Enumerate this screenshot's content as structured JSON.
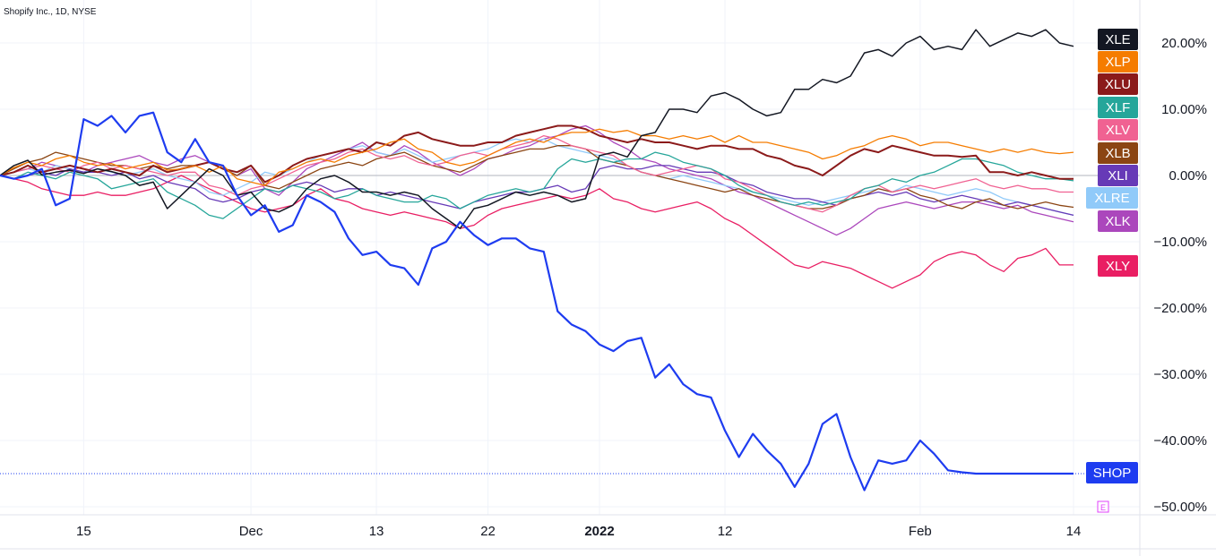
{
  "header": {
    "symbol_label": "Shopify Inc., 1D, NYSE"
  },
  "chart_data": {
    "type": "line",
    "y_unit": "%",
    "ylim": [
      -50,
      25
    ],
    "yticks": [
      "20.00%",
      "10.00%",
      "0.00%",
      "−10.00%",
      "−20.00%",
      "−30.00%",
      "−40.00%",
      "−50.00%"
    ],
    "ytick_values": [
      20,
      10,
      0,
      -10,
      -20,
      -30,
      -40,
      -50
    ],
    "x_tick_labels": [
      {
        "label": "15",
        "index": 6,
        "bold": false
      },
      {
        "label": "Dec",
        "index": 18,
        "bold": false
      },
      {
        "label": "13",
        "index": 27,
        "bold": false
      },
      {
        "label": "22",
        "index": 35,
        "bold": false
      },
      {
        "label": "2022",
        "index": 43,
        "bold": true
      },
      {
        "label": "12",
        "index": 52,
        "bold": false
      },
      {
        "label": "Feb",
        "index": 66,
        "bold": false
      },
      {
        "label": "14",
        "index": 77,
        "bold": false
      }
    ],
    "n_points": 78,
    "grid": true,
    "earnings_marker": "E",
    "series": [
      {
        "name": "XLE",
        "color": "#131722",
        "width": 1.5,
        "values": [
          0,
          1.5,
          2.3,
          0.1,
          0.5,
          0.8,
          0.3,
          1.0,
          0.6,
          0,
          -1.5,
          -1.0,
          -5,
          -3,
          -1.0,
          1.0,
          0,
          -3,
          -2.5,
          -5,
          -5.5,
          -4.5,
          -2.0,
          -0.5,
          0,
          -1.0,
          -2.5,
          -2.5,
          -3.0,
          -2.5,
          -3.0,
          -5.0,
          -6.5,
          -8.0,
          -5.0,
          -4.5,
          -3.5,
          -2.5,
          -3.0,
          -2.5,
          -3.0,
          -4.0,
          -3.5,
          3.0,
          3.5,
          2.8,
          6.0,
          6.5,
          10.0,
          10.0,
          9.5,
          12.0,
          12.5,
          11.5,
          10.0,
          9.0,
          9.5,
          13.0,
          13.0,
          14.5,
          14.0,
          15.0,
          18.5,
          19.0,
          18.0,
          20.0,
          21.0,
          19.0,
          19.5,
          19.0,
          22.0,
          19.5,
          20.5,
          21.5,
          21.0,
          22.0,
          20.0,
          19.5
        ]
      },
      {
        "name": "XLP",
        "color": "#f57c00",
        "width": 1.3,
        "values": [
          0,
          1.2,
          2.0,
          1.5,
          2.5,
          3.0,
          2.0,
          1.5,
          1.8,
          1.0,
          1.5,
          2.0,
          0.8,
          1.0,
          1.5,
          0.5,
          1.5,
          -0.5,
          -1.0,
          -1.5,
          0.5,
          1.0,
          2.0,
          2.5,
          2.0,
          3.0,
          3.5,
          4.0,
          5.0,
          5.5,
          4.0,
          3.5,
          2.0,
          1.5,
          2.0,
          3.0,
          4.0,
          5.0,
          5.5,
          5.0,
          6.0,
          6.5,
          6.5,
          7.0,
          6.5,
          6.8,
          6.0,
          6.0,
          5.5,
          6.0,
          5.5,
          6.0,
          5.0,
          6.0,
          5.0,
          5.0,
          4.5,
          4.0,
          3.5,
          2.5,
          3.0,
          4.0,
          4.5,
          5.5,
          6.0,
          5.5,
          4.5,
          5.0,
          5.0,
          4.5,
          4.0,
          3.5,
          4.0,
          3.5,
          4.0,
          3.5,
          3.3,
          3.5
        ]
      },
      {
        "name": "XLU",
        "color": "#8b1a1a",
        "width": 2.0,
        "values": [
          0,
          0.5,
          1.5,
          0.5,
          1.0,
          1.5,
          1.0,
          0.5,
          1.0,
          0.5,
          0,
          1.5,
          0.5,
          1.0,
          1.5,
          2.0,
          1.0,
          0.5,
          1.5,
          -1.0,
          0,
          1.5,
          2.5,
          3.0,
          3.5,
          4.0,
          3.5,
          5.0,
          4.5,
          6.0,
          6.5,
          5.5,
          5.0,
          4.5,
          4.5,
          5.0,
          5.0,
          6.0,
          6.5,
          7.0,
          7.5,
          7.5,
          7.0,
          6.0,
          5.5,
          5.0,
          5.5,
          5.0,
          5.0,
          4.5,
          4.0,
          4.5,
          4.5,
          4.0,
          4.0,
          3.0,
          2.5,
          1.5,
          1.0,
          0,
          1.5,
          3.0,
          4.0,
          3.5,
          4.5,
          4.0,
          3.5,
          3.0,
          3.0,
          2.8,
          3.0,
          0.5,
          0.5,
          0,
          0.5,
          0,
          -0.5,
          -0.5
        ]
      },
      {
        "name": "XLF",
        "color": "#26a69a",
        "width": 1.3,
        "values": [
          0,
          -0.5,
          0.5,
          0,
          -0.5,
          0.5,
          0,
          -0.5,
          -2.0,
          -1.5,
          -1.0,
          -0.5,
          -2.5,
          -3.5,
          -4.5,
          -6.0,
          -6.5,
          -5.0,
          -3.5,
          -2.0,
          -2.5,
          -1.5,
          -2.0,
          -2.5,
          -3.5,
          -3.0,
          -2.0,
          -3.0,
          -3.5,
          -4.0,
          -4.0,
          -3.0,
          -3.5,
          -5.0,
          -4.0,
          -3.0,
          -2.5,
          -2.0,
          -2.5,
          -2.0,
          1.0,
          2.5,
          2.0,
          2.5,
          2.0,
          2.5,
          2.5,
          3.5,
          3.0,
          2.0,
          1.5,
          1.0,
          0,
          -1.5,
          -2.5,
          -3.0,
          -4.0,
          -4.5,
          -4.0,
          -4.5,
          -4.0,
          -3.5,
          -2.0,
          -1.5,
          -0.5,
          -1.0,
          0,
          0.5,
          1.5,
          2.5,
          2.5,
          2.0,
          1.5,
          0.5,
          0,
          -0.5,
          -0.5,
          -0.8
        ]
      },
      {
        "name": "XLV",
        "color": "#f06292",
        "width": 1.3,
        "values": [
          0,
          0.5,
          1.0,
          1.5,
          1.0,
          0.5,
          1.5,
          2.0,
          1.0,
          1.5,
          1.0,
          0.5,
          0,
          0.5,
          0.5,
          -1.5,
          -2.0,
          -3.0,
          -2.0,
          -1.5,
          -0.5,
          0.5,
          1.5,
          2.0,
          2.5,
          3.5,
          4.0,
          3.0,
          2.5,
          3.0,
          2.0,
          1.5,
          2.0,
          3.0,
          3.5,
          3.0,
          4.0,
          4.5,
          5.0,
          6.0,
          5.5,
          4.5,
          4.0,
          3.5,
          3.0,
          1.5,
          0.5,
          0,
          0.5,
          1.0,
          1.5,
          1.0,
          -0.5,
          -1.0,
          -2.0,
          -3.0,
          -4.0,
          -4.5,
          -5.0,
          -5.5,
          -4.5,
          -3.0,
          -2.0,
          -1.5,
          -2.5,
          -2.0,
          -1.5,
          -2.0,
          -1.5,
          -1.0,
          -0.5,
          -1.5,
          -2.0,
          -1.5,
          -2.0,
          -2.0,
          -2.5,
          -2.5
        ]
      },
      {
        "name": "XLB",
        "color": "#8b4513",
        "width": 1.3,
        "values": [
          0,
          1.0,
          2.0,
          2.5,
          3.5,
          3.0,
          2.5,
          2.0,
          1.5,
          1.5,
          1.0,
          1.5,
          1.0,
          1.5,
          1.5,
          2.0,
          1.0,
          0,
          1.5,
          -1.5,
          -2.0,
          -1.0,
          0,
          1.0,
          1.5,
          2.0,
          1.5,
          2.5,
          3.0,
          3.5,
          2.5,
          1.5,
          1.0,
          0.5,
          1.5,
          2.5,
          3.0,
          3.5,
          4.0,
          4.0,
          4.5,
          4.5,
          4.0,
          2.5,
          2.0,
          1.5,
          0.5,
          0,
          -0.5,
          -1.0,
          -1.5,
          -2.0,
          -2.5,
          -2.0,
          -3.0,
          -3.5,
          -4.0,
          -4.5,
          -5.0,
          -5.0,
          -4.5,
          -3.5,
          -3.0,
          -2.0,
          -2.5,
          -2.0,
          -3.0,
          -3.5,
          -4.5,
          -5.0,
          -4.0,
          -3.5,
          -4.5,
          -5.0,
          -4.5,
          -4.0,
          -4.5,
          -4.8
        ]
      },
      {
        "name": "XLI",
        "color": "#673ab7",
        "width": 1.3,
        "values": [
          0,
          -0.5,
          0,
          0.5,
          0,
          1.0,
          0.5,
          0.5,
          0,
          0.5,
          -0.5,
          0,
          -1.0,
          -1.5,
          -2.0,
          -3.5,
          -4.0,
          -3.5,
          -2.5,
          -2.0,
          -2.5,
          -1.5,
          -1.0,
          -1.5,
          -2.5,
          -2.0,
          -2.0,
          -3.0,
          -2.5,
          -3.0,
          -3.5,
          -4.0,
          -4.5,
          -5.0,
          -4.0,
          -3.5,
          -3.0,
          -2.5,
          -2.5,
          -2.0,
          -1.5,
          -2.5,
          -2.0,
          1.0,
          1.5,
          1.0,
          1.0,
          1.5,
          1.5,
          1.0,
          0.5,
          0.5,
          0,
          -1.0,
          -1.5,
          -2.5,
          -3.0,
          -3.5,
          -3.5,
          -4.0,
          -4.5,
          -3.5,
          -3.0,
          -2.5,
          -3.0,
          -2.5,
          -3.5,
          -4.0,
          -3.5,
          -3.0,
          -3.5,
          -4.0,
          -4.5,
          -4.0,
          -4.5,
          -5.0,
          -5.5,
          -6.0
        ]
      },
      {
        "name": "XLRE",
        "color": "#90caf9",
        "width": 1.3,
        "values": [
          0,
          0.5,
          1.0,
          0.5,
          1.5,
          1.0,
          0.5,
          1.0,
          0.5,
          0,
          0.5,
          1.0,
          0,
          -0.5,
          -1.0,
          -2.5,
          -3.0,
          -2.0,
          -1.0,
          0.5,
          0,
          1.0,
          2.0,
          3.0,
          3.5,
          4.0,
          4.5,
          3.5,
          3.0,
          4.0,
          3.0,
          2.0,
          2.5,
          3.0,
          3.5,
          4.0,
          5.0,
          5.5,
          5.0,
          5.5,
          4.5,
          4.0,
          3.5,
          3.0,
          2.5,
          1.5,
          0.5,
          0,
          -0.5,
          0,
          -0.5,
          -1.0,
          -1.5,
          -2.0,
          -2.5,
          -3.0,
          -3.5,
          -4.0,
          -4.5,
          -4.0,
          -3.5,
          -3.0,
          -2.5,
          -2.0,
          -2.5,
          -1.5,
          -2.0,
          -2.5,
          -3.0,
          -2.5,
          -2.0,
          -2.5,
          -3.5,
          -4.0,
          -4.5,
          -5.0,
          -5.5,
          -6.0
        ]
      },
      {
        "name": "XLK",
        "color": "#ab47bc",
        "width": 1.3,
        "values": [
          0,
          0.5,
          1.0,
          2.0,
          1.5,
          1.0,
          0.5,
          1.5,
          2.0,
          2.5,
          3.0,
          2.0,
          1.5,
          2.5,
          3.0,
          2.0,
          1.0,
          0,
          1.0,
          -2.0,
          -3.0,
          -1.0,
          1.0,
          2.0,
          3.0,
          4.0,
          5.0,
          3.5,
          3.0,
          4.5,
          3.5,
          2.0,
          1.0,
          0,
          1.0,
          2.5,
          3.0,
          4.0,
          4.5,
          5.5,
          6.0,
          7.0,
          7.5,
          6.5,
          5.0,
          4.0,
          2.5,
          2.0,
          1.0,
          0.5,
          0,
          -0.5,
          -1.5,
          -2.5,
          -3.0,
          -4.0,
          -5.0,
          -6.0,
          -7.0,
          -8.0,
          -9.0,
          -8.0,
          -6.5,
          -5.0,
          -4.5,
          -4.0,
          -4.5,
          -5.0,
          -4.5,
          -4.0,
          -4.0,
          -4.5,
          -5.0,
          -4.5,
          -5.5,
          -6.0,
          -6.5,
          -7.0
        ]
      },
      {
        "name": "XLY",
        "color": "#e91e63",
        "width": 1.3,
        "values": [
          0,
          -0.5,
          -1.0,
          -2.0,
          -2.5,
          -3.0,
          -3.0,
          -2.5,
          -3.0,
          -3.0,
          -2.5,
          -2.0,
          -1.0,
          0,
          -1.0,
          -2.0,
          -3.0,
          -4.0,
          -5.0,
          -5.5,
          -5.0,
          -4.5,
          -3.0,
          -2.0,
          -3.5,
          -4.0,
          -5.0,
          -5.5,
          -6.0,
          -5.5,
          -6.0,
          -6.5,
          -7.0,
          -8.0,
          -7.5,
          -6.0,
          -5.0,
          -4.5,
          -4.0,
          -3.5,
          -3.0,
          -3.5,
          -3.0,
          -2.0,
          -3.5,
          -4.0,
          -5.0,
          -5.5,
          -5.0,
          -4.5,
          -4.0,
          -5.0,
          -6.5,
          -7.5,
          -9.0,
          -10.5,
          -12.0,
          -13.5,
          -14.0,
          -13.0,
          -13.5,
          -14.0,
          -15.0,
          -16.0,
          -17.0,
          -16.0,
          -15.0,
          -13.0,
          -12.0,
          -11.5,
          -12.0,
          -13.5,
          -14.5,
          -12.5,
          -12.0,
          -11.0,
          -13.5,
          -13.5
        ]
      },
      {
        "name": "SHOP",
        "color": "#1e3cf0",
        "width": 2.2,
        "values": [
          0,
          -0.5,
          0,
          1.0,
          -4.5,
          -3.5,
          8.5,
          7.5,
          9.0,
          6.5,
          9.0,
          9.5,
          3.5,
          2.0,
          5.5,
          2.0,
          1.5,
          -3.0,
          -6.0,
          -4.5,
          -8.5,
          -7.5,
          -3.0,
          -4.0,
          -5.5,
          -9.5,
          -12.0,
          -11.5,
          -13.5,
          -14.0,
          -16.5,
          -11.0,
          -10.0,
          -7.0,
          -9.0,
          -10.5,
          -9.5,
          -9.5,
          -11.0,
          -11.5,
          -20.5,
          -22.5,
          -23.5,
          -25.5,
          -26.5,
          -25.0,
          -24.5,
          -30.5,
          -28.5,
          -31.5,
          -33.0,
          -33.5,
          -38.5,
          -42.5,
          -39.0,
          -41.5,
          -43.5,
          -47.0,
          -43.5,
          -37.5,
          -36.0,
          -42.5,
          -47.5,
          -43.0,
          -43.5,
          -43.0,
          -40.0,
          -42.0,
          -44.5,
          -44.8,
          -45.0,
          -45.0,
          -45.0,
          -45.0,
          -45.0,
          -45.0,
          -45.0,
          -45.0
        ]
      }
    ]
  }
}
